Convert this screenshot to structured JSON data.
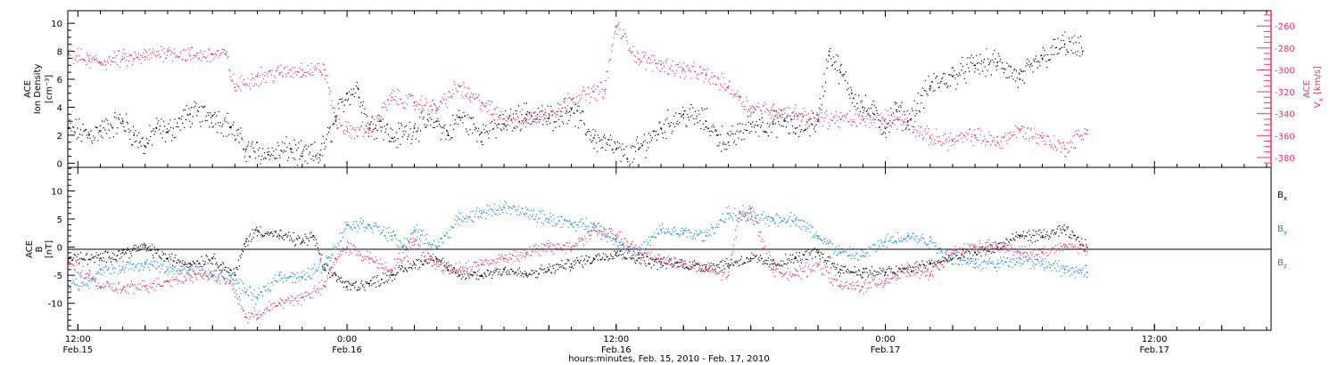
{
  "x_label": "hours:minutes, Feb. 15, 2010 - Feb. 17, 2010",
  "x_ticks": [
    {
      "t": 12,
      "time": "12:00",
      "date": "Feb.15"
    },
    {
      "t": 24,
      "time": "0:00",
      "date": "Feb.16"
    },
    {
      "t": 36,
      "time": "12:00",
      "date": "Feb.16"
    },
    {
      "t": 48,
      "time": "0:00",
      "date": "Feb.17"
    },
    {
      "t": 60,
      "time": "12:00",
      "date": "Feb.17"
    }
  ],
  "x_range_hours": [
    11.55,
    65.2
  ],
  "colors": {
    "black": "#000000",
    "pink": "#e8336b",
    "blue": "#1e88e5"
  },
  "chart_data": [
    {
      "type": "scatter",
      "panel": "top",
      "ylabel_left": [
        "ACE",
        "Ion Density",
        "[cm⁻³]"
      ],
      "ylabel_right": [
        "ACE",
        "V",
        "x",
        "[km/s]"
      ],
      "ylim_left": [
        -0.3,
        10.9
      ],
      "yticks_left": [
        0,
        2,
        4,
        6,
        8,
        10
      ],
      "ylim_right": [
        -389,
        -246
      ],
      "yticks_right": [
        -380,
        -360,
        -340,
        -320,
        -300,
        -280,
        -260
      ],
      "series": [
        {
          "axis": "left",
          "color": "#000000",
          "points": [
            [
              11.6,
              2.5
            ],
            [
              12.5,
              2.0
            ],
            [
              13,
              2.3
            ],
            [
              14,
              3.0
            ],
            [
              14.5,
              2.0
            ],
            [
              15,
              1.2
            ],
            [
              15.5,
              2.5
            ],
            [
              16,
              2.2
            ],
            [
              17,
              3.5
            ],
            [
              18,
              3.4
            ],
            [
              18.8,
              2.6
            ],
            [
              19.5,
              1.0
            ],
            [
              20.5,
              0.6
            ],
            [
              21.5,
              1.0
            ],
            [
              22,
              0.5
            ],
            [
              22.8,
              0.6
            ],
            [
              23.5,
              3.0
            ],
            [
              24,
              5.0
            ],
            [
              24.5,
              5.3
            ],
            [
              25,
              2.5
            ],
            [
              25.5,
              3.0
            ],
            [
              26,
              1.8
            ],
            [
              27,
              2.5
            ],
            [
              28,
              3.0
            ],
            [
              28.5,
              2.0
            ],
            [
              29,
              3.3
            ],
            [
              30,
              2.2
            ],
            [
              31,
              2.8
            ],
            [
              32,
              3.5
            ],
            [
              33,
              3.2
            ],
            [
              34,
              3.9
            ],
            [
              35,
              1.8
            ],
            [
              36,
              1.0
            ],
            [
              36.5,
              0.3
            ],
            [
              37,
              1.0
            ],
            [
              38,
              2.5
            ],
            [
              39,
              3.5
            ],
            [
              40,
              3.0
            ],
            [
              40.5,
              2.0
            ],
            [
              41,
              1.5
            ],
            [
              42,
              2.8
            ],
            [
              43,
              2.8
            ],
            [
              43.5,
              3.0
            ],
            [
              44,
              2.5
            ],
            [
              45,
              3.0
            ],
            [
              45.5,
              8.0
            ],
            [
              46,
              6.5
            ],
            [
              46.5,
              5.0
            ],
            [
              47,
              4.0
            ],
            [
              47.5,
              3.5
            ],
            [
              48,
              2.5
            ],
            [
              48.5,
              3.8
            ],
            [
              49,
              3.0
            ],
            [
              50,
              5.5
            ],
            [
              51,
              6.2
            ],
            [
              52,
              7.0
            ],
            [
              53,
              7.2
            ],
            [
              54,
              6.0
            ],
            [
              55,
              7.5
            ],
            [
              56,
              8.5
            ],
            [
              56.8,
              8.0
            ]
          ]
        },
        {
          "axis": "right",
          "color": "#e8336b",
          "points": [
            [
              11.6,
              -285
            ],
            [
              12.5,
              -292
            ],
            [
              13,
              -293
            ],
            [
              14,
              -290
            ],
            [
              14.5,
              -290
            ],
            [
              15,
              -288
            ],
            [
              16,
              -283
            ],
            [
              17,
              -287
            ],
            [
              18,
              -286
            ],
            [
              18.6,
              -286
            ],
            [
              19,
              -316
            ],
            [
              20,
              -306
            ],
            [
              21,
              -303
            ],
            [
              22,
              -300
            ],
            [
              23,
              -300
            ],
            [
              23.5,
              -345
            ],
            [
              24,
              -356
            ],
            [
              25,
              -355
            ],
            [
              26,
              -325
            ],
            [
              27,
              -330
            ],
            [
              28,
              -335
            ],
            [
              29,
              -315
            ],
            [
              29.5,
              -325
            ],
            [
              30,
              -330
            ],
            [
              31,
              -345
            ],
            [
              32,
              -345
            ],
            [
              33,
              -340
            ],
            [
              34,
              -327
            ],
            [
              35,
              -320
            ],
            [
              35.5,
              -318
            ],
            [
              36,
              -260
            ],
            [
              37,
              -290
            ],
            [
              38,
              -295
            ],
            [
              39,
              -300
            ],
            [
              40,
              -305
            ],
            [
              41,
              -315
            ],
            [
              41.5,
              -325
            ],
            [
              42,
              -335
            ],
            [
              43,
              -337
            ],
            [
              44,
              -340
            ],
            [
              45,
              -345
            ],
            [
              46,
              -345
            ],
            [
              47,
              -346
            ],
            [
              48,
              -345
            ],
            [
              49,
              -348
            ],
            [
              50,
              -362
            ],
            [
              51,
              -365
            ],
            [
              52,
              -360
            ],
            [
              53,
              -366
            ],
            [
              54,
              -355
            ],
            [
              55,
              -362
            ],
            [
              56,
              -372
            ],
            [
              57,
              -355
            ]
          ]
        }
      ]
    },
    {
      "type": "scatter",
      "panel": "bottom",
      "ylabel_left": [
        "ACE",
        "B",
        "[nT]"
      ],
      "ylim": [
        -14.8,
        14.2
      ],
      "yticks": [
        -10,
        -5,
        0,
        5,
        10
      ],
      "legend": [
        {
          "name": "B",
          "sub": "x",
          "color": "#000000"
        },
        {
          "name": "B",
          "sub": "y",
          "color": "#1e88e5"
        },
        {
          "name": "B",
          "sub": "z",
          "color": "#e8336b"
        }
      ],
      "series": [
        {
          "name": "Bx",
          "color": "#000000",
          "points": [
            [
              11.6,
              -2
            ],
            [
              13,
              -2
            ],
            [
              14,
              -1
            ],
            [
              15,
              0
            ],
            [
              16,
              -2
            ],
            [
              17,
              -3
            ],
            [
              18,
              -2
            ],
            [
              19,
              -5
            ],
            [
              19.5,
              1
            ],
            [
              20,
              3
            ],
            [
              21,
              2
            ],
            [
              22,
              1
            ],
            [
              22.5,
              2
            ],
            [
              23,
              -4
            ],
            [
              23.5,
              -5
            ],
            [
              24,
              -7
            ],
            [
              25,
              -6.5
            ],
            [
              26,
              -5
            ],
            [
              27,
              -3
            ],
            [
              28,
              -2
            ],
            [
              28.5,
              -4
            ],
            [
              29,
              -5
            ],
            [
              30,
              -5
            ],
            [
              31,
              -4
            ],
            [
              32,
              -5
            ],
            [
              33,
              -4
            ],
            [
              34,
              -3
            ],
            [
              35,
              -2
            ],
            [
              36,
              -1
            ],
            [
              37,
              -2
            ],
            [
              38,
              -3
            ],
            [
              39,
              -3
            ],
            [
              40,
              -3.5
            ],
            [
              41,
              -3
            ],
            [
              42,
              -2
            ],
            [
              43,
              -3
            ],
            [
              44,
              -2
            ],
            [
              45,
              -1
            ],
            [
              46,
              -4
            ],
            [
              47,
              -4.5
            ],
            [
              48,
              -4.5
            ],
            [
              49,
              -4
            ],
            [
              50,
              -3
            ],
            [
              51,
              -2
            ],
            [
              52,
              -1
            ],
            [
              53,
              0
            ],
            [
              54,
              2
            ],
            [
              55,
              2
            ],
            [
              56,
              3
            ],
            [
              57,
              0
            ]
          ]
        },
        {
          "name": "By",
          "color": "#1e88e5",
          "points": [
            [
              11.6,
              -7
            ],
            [
              12.5,
              -6
            ],
            [
              13,
              -4
            ],
            [
              14,
              -3.5
            ],
            [
              15,
              -3
            ],
            [
              16,
              -4
            ],
            [
              17,
              -4
            ],
            [
              18,
              -5
            ],
            [
              18.8,
              -5
            ],
            [
              19.5,
              -8
            ],
            [
              20,
              -9
            ],
            [
              21,
              -5
            ],
            [
              22,
              -5.5
            ],
            [
              23,
              -3
            ],
            [
              23.5,
              0
            ],
            [
              24,
              4
            ],
            [
              25,
              4
            ],
            [
              26,
              2
            ],
            [
              26.5,
              0
            ],
            [
              27,
              3
            ],
            [
              28,
              0
            ],
            [
              29,
              5
            ],
            [
              30,
              6
            ],
            [
              31,
              7
            ],
            [
              32,
              6
            ],
            [
              33,
              5
            ],
            [
              34,
              4
            ],
            [
              35,
              4
            ],
            [
              36,
              1
            ],
            [
              37,
              -1
            ],
            [
              38,
              3
            ],
            [
              39,
              2.5
            ],
            [
              40,
              2
            ],
            [
              41,
              6
            ],
            [
              42,
              5
            ],
            [
              43,
              5
            ],
            [
              44,
              5
            ],
            [
              45,
              2
            ],
            [
              46,
              -1
            ],
            [
              47,
              -1.5
            ],
            [
              48,
              1
            ],
            [
              49,
              2
            ],
            [
              50,
              1
            ],
            [
              51,
              -2
            ],
            [
              52,
              -3
            ],
            [
              53,
              -3
            ],
            [
              54,
              -2
            ],
            [
              55,
              -3
            ],
            [
              56,
              -4
            ],
            [
              57,
              -4.5
            ]
          ]
        },
        {
          "name": "Bz",
          "color": "#e8336b",
          "points": [
            [
              11.6,
              -3
            ],
            [
              12.5,
              -5
            ],
            [
              13,
              -7
            ],
            [
              14,
              -7.5
            ],
            [
              15,
              -7
            ],
            [
              16,
              -6
            ],
            [
              17,
              -5
            ],
            [
              18,
              -5
            ],
            [
              18.8,
              -6
            ],
            [
              19.5,
              -12.5
            ],
            [
              20,
              -12
            ],
            [
              21,
              -10
            ],
            [
              22,
              -9
            ],
            [
              23,
              -7
            ],
            [
              23.5,
              -2
            ],
            [
              24,
              0
            ],
            [
              25,
              -2
            ],
            [
              26,
              -4
            ],
            [
              27,
              1
            ],
            [
              28,
              -3
            ],
            [
              29,
              -4
            ],
            [
              30,
              -3
            ],
            [
              31,
              -2
            ],
            [
              32,
              -1
            ],
            [
              33,
              0
            ],
            [
              34,
              0
            ],
            [
              35,
              3
            ],
            [
              36,
              2
            ],
            [
              37,
              -1
            ],
            [
              38,
              -2
            ],
            [
              39,
              -3
            ],
            [
              40,
              -4
            ],
            [
              41,
              -5
            ],
            [
              41.5,
              6
            ],
            [
              42,
              7
            ],
            [
              43,
              -4
            ],
            [
              44,
              -5
            ],
            [
              45,
              -3
            ],
            [
              46,
              -7
            ],
            [
              47,
              -7
            ],
            [
              48,
              -6
            ],
            [
              49,
              -4
            ],
            [
              50,
              -5
            ],
            [
              51,
              -1
            ],
            [
              52,
              0
            ],
            [
              53,
              0
            ],
            [
              54,
              -1
            ],
            [
              55,
              -1
            ],
            [
              56,
              0
            ],
            [
              57,
              0
            ]
          ]
        }
      ]
    }
  ]
}
